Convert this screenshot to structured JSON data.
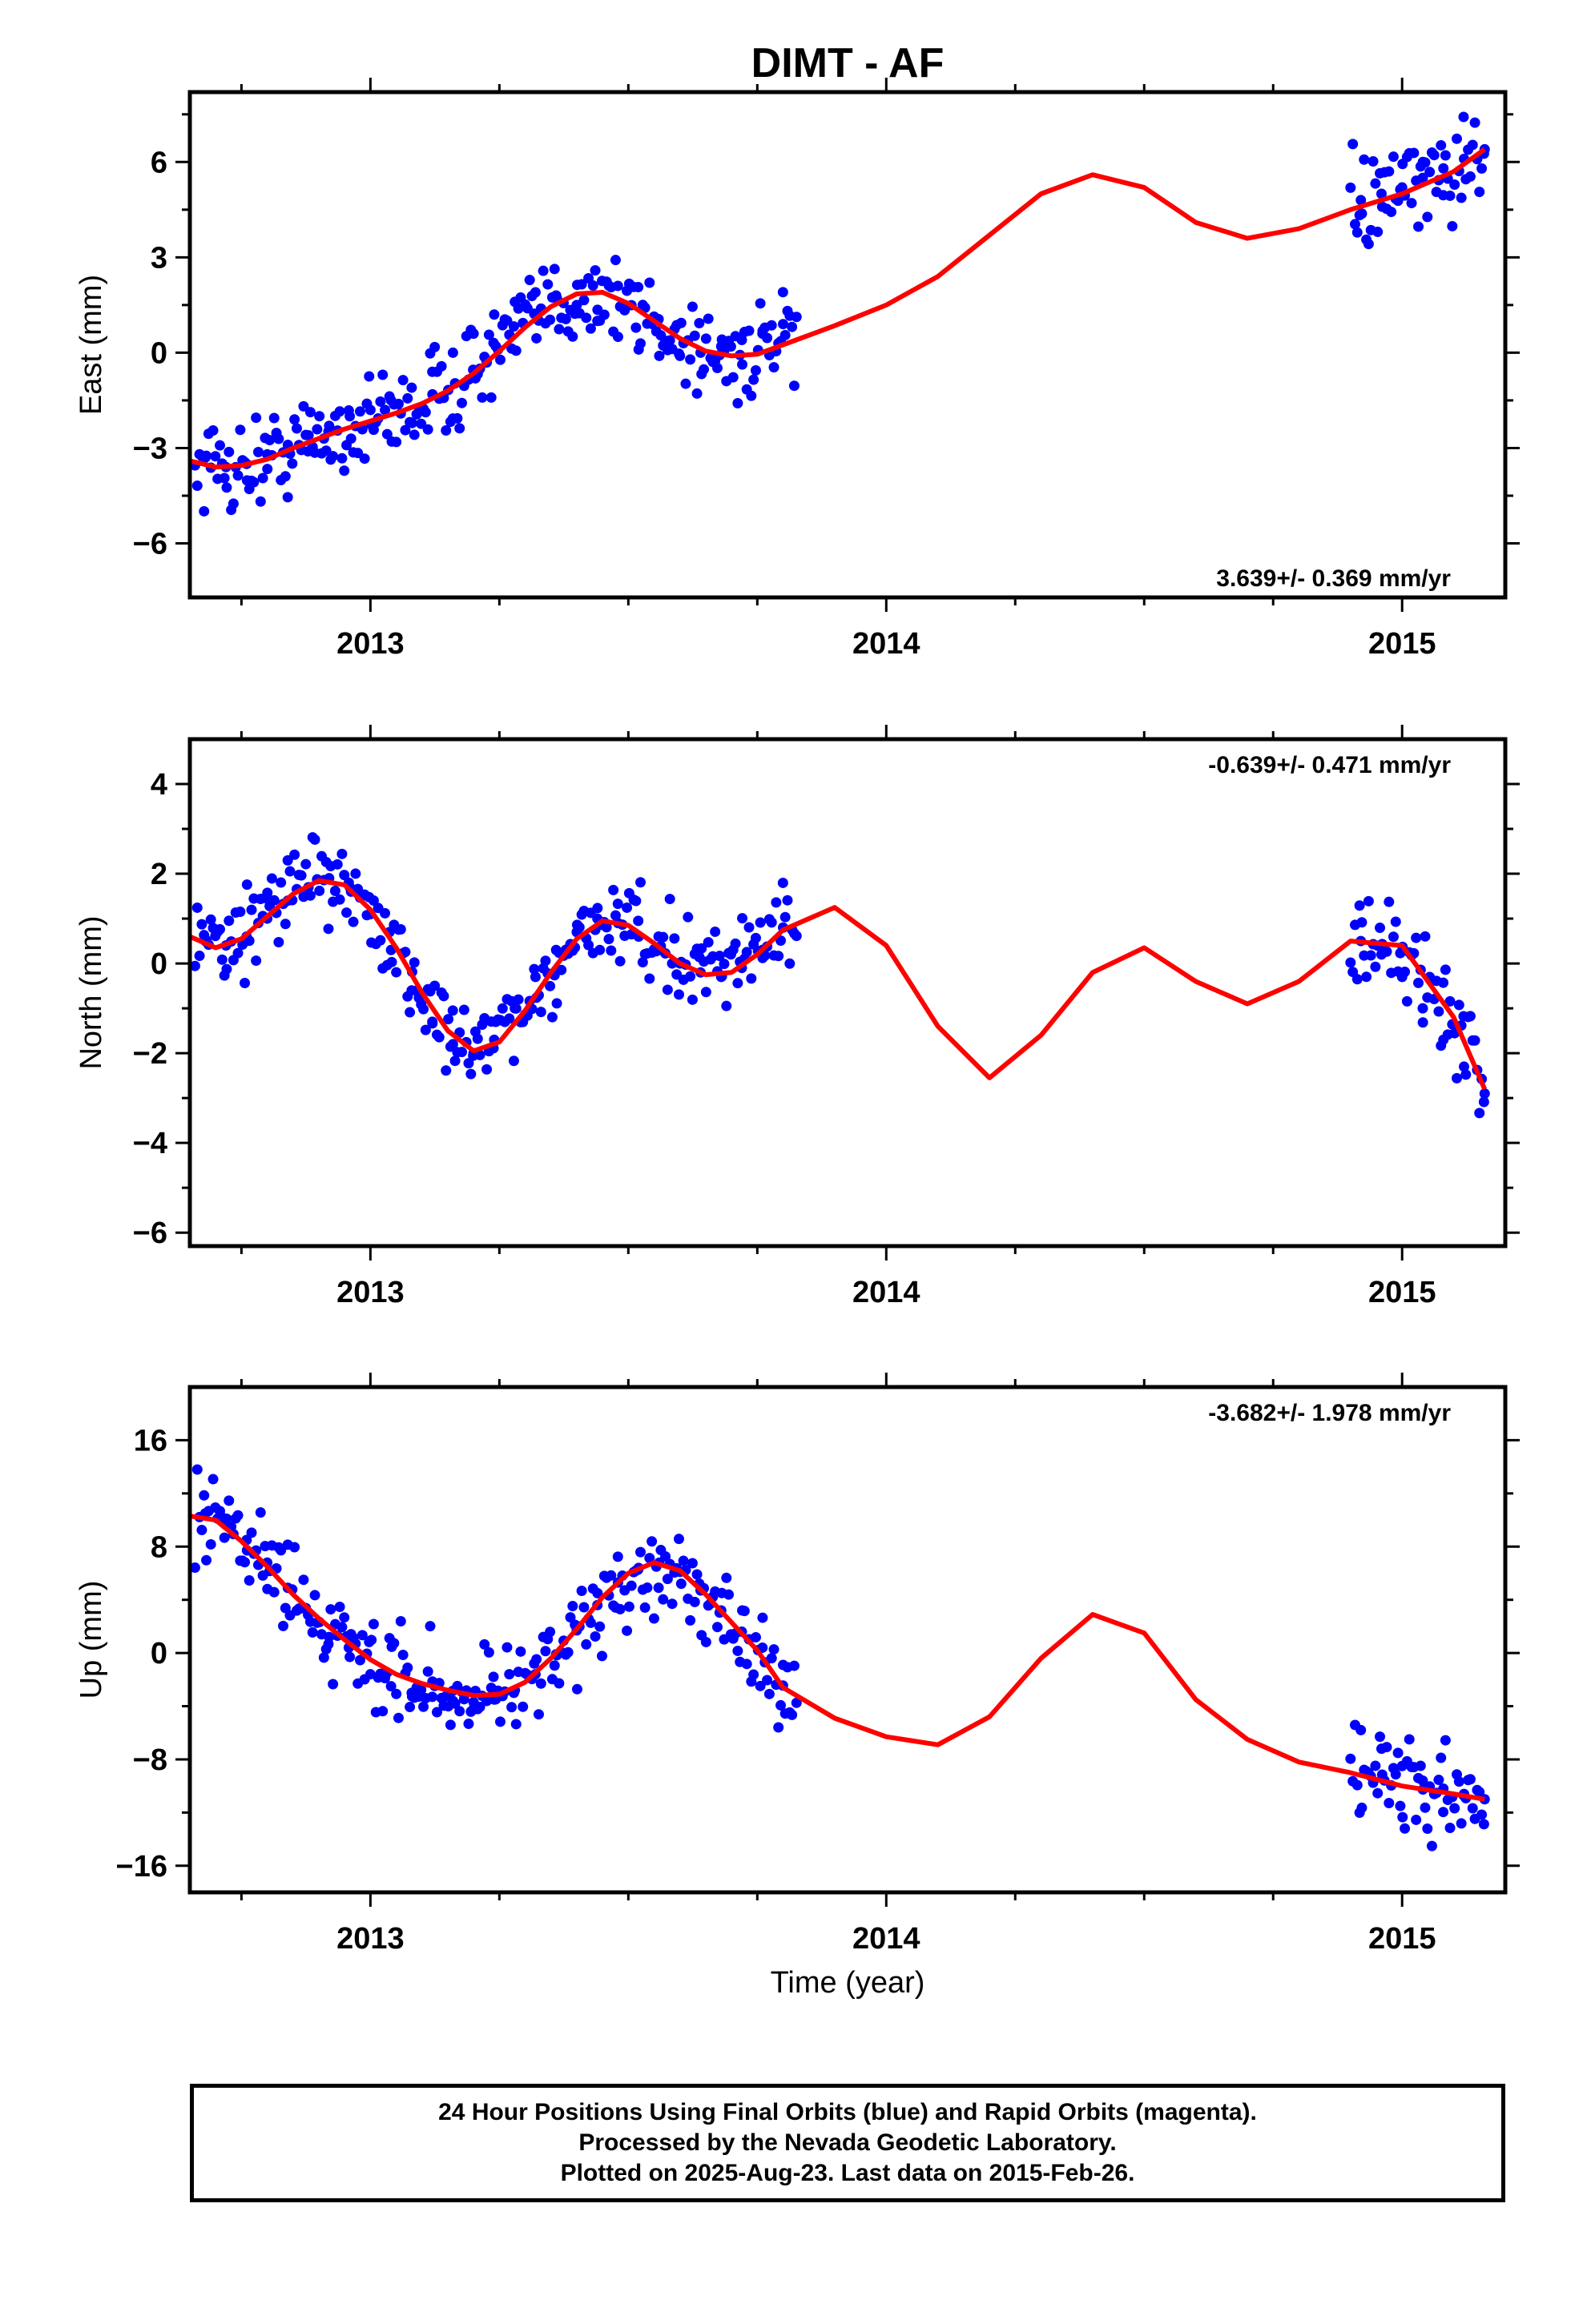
{
  "figure": {
    "title": "DIMT - AF",
    "xlabel": "Time (year)",
    "caption": [
      "24 Hour Positions Using Final Orbits (blue) and Rapid Orbits (magenta).",
      "Processed by the Nevada Geodetic Laboratory.",
      "Plotted on 2025-Aug-23. Last data on 2015-Feb-26."
    ],
    "colors": {
      "data_points": "#0000ff",
      "model_curve": "#ff0000",
      "frame": "#000000"
    }
  },
  "chart_data": [
    {
      "type": "scatter",
      "panel": "east",
      "ylabel": "East (mm)",
      "rate_label": "3.639+/- 0.369 mm/yr",
      "rate_label_position": "bottom-right",
      "xlim": [
        2012.65,
        2015.2
      ],
      "ylim": [
        -7.7,
        8.2
      ],
      "xticks": [
        2013,
        2014,
        2015
      ],
      "yticks": [
        -6,
        -3,
        0,
        3,
        6
      ],
      "grid": false,
      "series": [
        {
          "kind": "points",
          "x": [
            2012.68,
            2012.72,
            2012.76,
            2012.8,
            2012.84,
            2012.88,
            2012.92,
            2012.96,
            2013.0,
            2013.04,
            2013.08,
            2013.12,
            2013.16,
            2013.2,
            2013.24,
            2013.28,
            2013.32,
            2013.36,
            2013.4,
            2013.44,
            2013.48,
            2013.52,
            2013.56,
            2013.6,
            2013.64,
            2013.68,
            2013.72,
            2013.76,
            2013.8,
            2014.92,
            2014.96,
            2015.0,
            2015.04,
            2015.08,
            2015.12,
            2015.16
          ],
          "y": [
            -3.3,
            -3.6,
            -3.5,
            -3.2,
            -2.9,
            -2.6,
            -2.3,
            -2.0,
            -1.8,
            -1.5,
            -1.1,
            -0.6,
            0.0,
            0.6,
            1.2,
            1.6,
            1.9,
            1.8,
            1.5,
            1.0,
            0.5,
            0.1,
            -0.1,
            -0.1,
            0.0,
            0.2,
            0.4,
            0.6,
            0.9,
            4.8,
            5.0,
            5.2,
            5.5,
            5.8,
            6.1,
            6.4
          ]
        },
        {
          "kind": "model",
          "x": [
            2012.65,
            2012.7,
            2012.75,
            2012.8,
            2012.85,
            2012.9,
            2012.95,
            2013.0,
            2013.05,
            2013.1,
            2013.15,
            2013.2,
            2013.25,
            2013.3,
            2013.35,
            2013.4,
            2013.45,
            2013.5,
            2013.55,
            2013.6,
            2013.65,
            2013.7,
            2013.75,
            2013.8,
            2013.9,
            2014.0,
            2014.1,
            2014.2,
            2014.3,
            2014.4,
            2014.5,
            2014.6,
            2014.7,
            2014.8,
            2014.9,
            2015.0,
            2015.1,
            2015.16
          ],
          "y": [
            -3.4,
            -3.6,
            -3.55,
            -3.35,
            -3.0,
            -2.7,
            -2.4,
            -2.15,
            -1.9,
            -1.6,
            -1.2,
            -0.65,
            0.05,
            0.8,
            1.45,
            1.85,
            1.9,
            1.55,
            1.0,
            0.45,
            0.05,
            -0.1,
            -0.05,
            0.25,
            0.85,
            1.5,
            2.4,
            3.7,
            5.0,
            5.6,
            5.2,
            4.1,
            3.6,
            3.9,
            4.5,
            5.0,
            5.7,
            6.4
          ]
        }
      ]
    },
    {
      "type": "scatter",
      "panel": "north",
      "ylabel": "North (mm)",
      "rate_label": "-0.639+/- 0.471 mm/yr",
      "rate_label_position": "top-right",
      "xlim": [
        2012.65,
        2015.2
      ],
      "ylim": [
        -6.3,
        5.0
      ],
      "xticks": [
        2013,
        2014,
        2015
      ],
      "yticks": [
        -6,
        -4,
        -2,
        0,
        2,
        4
      ],
      "grid": false,
      "series": [
        {
          "kind": "points",
          "x": [
            2012.68,
            2012.72,
            2012.76,
            2012.8,
            2012.84,
            2012.88,
            2012.92,
            2012.96,
            2013.0,
            2013.04,
            2013.08,
            2013.12,
            2013.16,
            2013.2,
            2013.24,
            2013.28,
            2013.32,
            2013.36,
            2013.4,
            2013.44,
            2013.48,
            2013.52,
            2013.56,
            2013.6,
            2013.64,
            2013.68,
            2013.72,
            2013.76,
            2013.8,
            2014.92,
            2014.96,
            2015.0,
            2015.04,
            2015.08,
            2015.12,
            2015.16
          ],
          "y": [
            0.5,
            0.4,
            0.6,
            1.0,
            1.4,
            1.7,
            1.9,
            1.7,
            1.1,
            0.3,
            -0.6,
            -1.3,
            -1.8,
            -2.0,
            -1.7,
            -1.0,
            -0.3,
            0.3,
            0.7,
            1.0,
            0.9,
            0.6,
            0.3,
            0.0,
            -0.2,
            -0.3,
            -0.1,
            0.3,
            0.8,
            0.5,
            0.2,
            -0.3,
            -1.0,
            -1.7,
            -2.3,
            -2.9
          ]
        },
        {
          "kind": "model",
          "x": [
            2012.65,
            2012.7,
            2012.75,
            2012.8,
            2012.85,
            2012.9,
            2012.95,
            2013.0,
            2013.05,
            2013.1,
            2013.15,
            2013.2,
            2013.25,
            2013.3,
            2013.35,
            2013.4,
            2013.45,
            2013.5,
            2013.55,
            2013.6,
            2013.65,
            2013.7,
            2013.75,
            2013.8,
            2013.9,
            2014.0,
            2014.1,
            2014.2,
            2014.3,
            2014.4,
            2014.5,
            2014.6,
            2014.7,
            2014.8,
            2014.9,
            2015.0,
            2015.1,
            2015.16
          ],
          "y": [
            0.6,
            0.35,
            0.55,
            1.05,
            1.55,
            1.85,
            1.75,
            1.2,
            0.35,
            -0.65,
            -1.5,
            -1.95,
            -1.75,
            -1.05,
            -0.2,
            0.55,
            0.95,
            0.85,
            0.45,
            0.0,
            -0.25,
            -0.2,
            0.2,
            0.75,
            1.25,
            0.4,
            -1.4,
            -2.55,
            -1.6,
            -0.2,
            0.35,
            -0.4,
            -0.9,
            -0.4,
            0.5,
            0.4,
            -1.2,
            -2.8
          ]
        }
      ]
    },
    {
      "type": "scatter",
      "panel": "up",
      "ylabel": "Up (mm)",
      "rate_label": "-3.682+/- 1.978 mm/yr",
      "rate_label_position": "top-right",
      "xlim": [
        2012.65,
        2015.2
      ],
      "ylim": [
        -18,
        20
      ],
      "xticks": [
        2013,
        2014,
        2015
      ],
      "yticks": [
        -16,
        -8,
        0,
        8,
        16
      ],
      "grid": false,
      "series": [
        {
          "kind": "points",
          "x": [
            2012.68,
            2012.72,
            2012.76,
            2012.8,
            2012.84,
            2012.88,
            2012.92,
            2012.96,
            2013.0,
            2013.04,
            2013.08,
            2013.12,
            2013.16,
            2013.2,
            2013.24,
            2013.28,
            2013.32,
            2013.36,
            2013.4,
            2013.44,
            2013.48,
            2013.52,
            2013.56,
            2013.6,
            2013.64,
            2013.68,
            2013.72,
            2013.76,
            2013.8,
            2014.92,
            2014.96,
            2015.0,
            2015.04,
            2015.08,
            2015.12,
            2015.16
          ],
          "y": [
            10.5,
            9.8,
            8.5,
            6.8,
            4.9,
            3.0,
            1.2,
            -0.3,
            -1.6,
            -2.5,
            -3.0,
            -3.3,
            -3.6,
            -3.7,
            -3.5,
            -2.8,
            -1.6,
            -0.1,
            1.7,
            3.6,
            5.3,
            6.4,
            6.8,
            6.1,
            4.7,
            3.2,
            1.6,
            0.4,
            -0.9,
            -5.8,
            -7.2,
            -8.5,
            -9.6,
            -10.2,
            -10.6,
            -11.0
          ]
        },
        {
          "kind": "model",
          "x": [
            2012.65,
            2012.7,
            2012.75,
            2012.8,
            2012.85,
            2012.9,
            2012.95,
            2013.0,
            2013.05,
            2013.1,
            2013.15,
            2013.2,
            2013.25,
            2013.3,
            2013.35,
            2013.4,
            2013.45,
            2013.5,
            2013.55,
            2013.6,
            2013.65,
            2013.7,
            2013.75,
            2013.8,
            2013.9,
            2014.0,
            2014.1,
            2014.2,
            2014.3,
            2014.4,
            2014.5,
            2014.6,
            2014.7,
            2014.8,
            2014.9,
            2015.0,
            2015.1,
            2015.16
          ],
          "y": [
            10.3,
            10.0,
            8.4,
            6.5,
            4.4,
            2.6,
            1.0,
            -0.5,
            -1.6,
            -2.3,
            -2.8,
            -3.2,
            -3.1,
            -2.2,
            -0.4,
            1.8,
            4.2,
            6.0,
            6.8,
            6.2,
            4.4,
            2.3,
            0.2,
            -2.6,
            -4.9,
            -6.3,
            -6.9,
            -4.8,
            -0.4,
            2.9,
            1.5,
            -3.5,
            -6.5,
            -8.2,
            -9.0,
            -10.0,
            -10.6,
            -11.0
          ]
        }
      ]
    }
  ]
}
